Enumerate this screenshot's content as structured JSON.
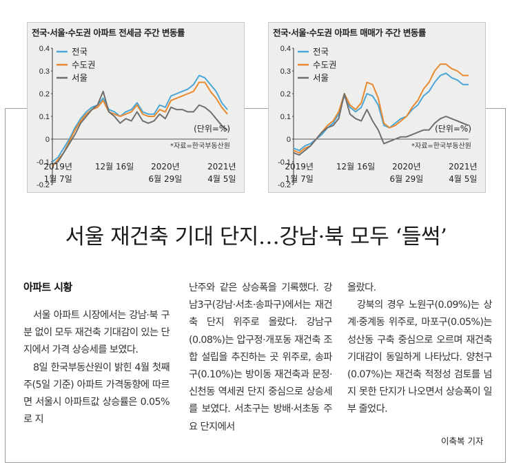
{
  "charts": [
    {
      "title": "전국·서울·수도권 아파트 전세금 주간 변동률",
      "legend": [
        "전국",
        "수도권",
        "서울"
      ],
      "unit_label": "(단위=%)",
      "source": "*자료=한국부동산원",
      "x_ticks": [
        {
          "line1": "2019년",
          "line2": "1월 7일"
        },
        {
          "line1": "12월 16일",
          "line2": ""
        },
        {
          "line1": "2020년",
          "line2": "6월 29일"
        },
        {
          "line1": "2021년",
          "line2": "4월 5일"
        }
      ],
      "y_ticks": [
        "0.4",
        "0.3",
        "0.2",
        "0.1",
        "0",
        "-0.1",
        "-0.2"
      ]
    },
    {
      "title": "전국·서울·수도권 아파트 매매가 주간 변동률",
      "legend": [
        "전국",
        "수도권",
        "서울"
      ],
      "unit_label": "(단위=%)",
      "source": "*자료=한국부동산원",
      "x_ticks": [
        {
          "line1": "2019년",
          "line2": "1월 7일"
        },
        {
          "line1": "12월 16일",
          "line2": ""
        },
        {
          "line1": "2020년",
          "line2": "6월 29일"
        },
        {
          "line1": "2021년",
          "line2": "4월 5일"
        }
      ],
      "y_ticks": [
        "0.4",
        "0.3",
        "0.2",
        "0.1",
        "0",
        "-0.1",
        "-0.2"
      ]
    }
  ],
  "chart_data": [
    {
      "type": "line",
      "title": "전국·서울·수도권 아파트 전세금 주간 변동률",
      "ylim": [
        -0.2,
        0.4
      ],
      "x": [
        0,
        4,
        8,
        12,
        16,
        20,
        24,
        28,
        32,
        36,
        40,
        44,
        48,
        52,
        56,
        60,
        64,
        68,
        72,
        76,
        80,
        84,
        88,
        92,
        96,
        100,
        104,
        108,
        112,
        116,
        120,
        124
      ],
      "series": [
        {
          "name": "전국",
          "color": "#4aa6d6",
          "values": [
            -0.1,
            -0.08,
            -0.04,
            0.0,
            0.05,
            0.09,
            0.12,
            0.14,
            0.15,
            0.18,
            0.13,
            0.12,
            0.1,
            0.12,
            0.13,
            0.16,
            0.12,
            0.11,
            0.11,
            0.15,
            0.14,
            0.19,
            0.2,
            0.21,
            0.22,
            0.24,
            0.28,
            0.27,
            0.24,
            0.21,
            0.16,
            0.13
          ]
        },
        {
          "name": "수도권",
          "color": "#e8892f",
          "values": [
            -0.12,
            -0.09,
            -0.06,
            -0.01,
            0.04,
            0.08,
            0.11,
            0.13,
            0.14,
            0.17,
            0.12,
            0.11,
            0.1,
            0.11,
            0.12,
            0.15,
            0.11,
            0.1,
            0.1,
            0.13,
            0.12,
            0.17,
            0.18,
            0.19,
            0.2,
            0.21,
            0.25,
            0.25,
            0.21,
            0.18,
            0.14,
            0.11
          ]
        },
        {
          "name": "서울",
          "color": "#6e6e6e",
          "values": [
            -0.11,
            -0.1,
            -0.06,
            -0.02,
            0.02,
            0.07,
            0.1,
            0.13,
            0.15,
            0.21,
            0.12,
            0.1,
            0.07,
            0.09,
            0.08,
            0.12,
            0.08,
            0.07,
            0.08,
            0.11,
            0.09,
            0.14,
            0.13,
            0.13,
            0.12,
            0.12,
            0.15,
            0.14,
            0.12,
            0.09,
            0.06,
            0.04
          ]
        }
      ]
    },
    {
      "type": "line",
      "title": "전국·서울·수도권 아파트 매매가 주간 변동률",
      "ylim": [
        -0.2,
        0.4
      ],
      "x": [
        0,
        4,
        8,
        12,
        16,
        20,
        24,
        28,
        32,
        36,
        40,
        44,
        48,
        52,
        56,
        60,
        64,
        68,
        72,
        76,
        80,
        84,
        88,
        92,
        96,
        100,
        104,
        108,
        112,
        116,
        120,
        124
      ],
      "series": [
        {
          "name": "전국",
          "color": "#4aa6d6",
          "values": [
            -0.04,
            -0.05,
            -0.03,
            -0.02,
            0.0,
            0.02,
            0.05,
            0.07,
            0.11,
            0.19,
            0.14,
            0.12,
            0.14,
            0.2,
            0.19,
            0.15,
            0.06,
            0.05,
            0.07,
            0.09,
            0.1,
            0.13,
            0.15,
            0.19,
            0.21,
            0.25,
            0.28,
            0.29,
            0.27,
            0.26,
            0.24,
            0.24
          ]
        },
        {
          "name": "수도권",
          "color": "#e8892f",
          "values": [
            -0.05,
            -0.06,
            -0.04,
            -0.03,
            0.0,
            0.03,
            0.06,
            0.08,
            0.12,
            0.2,
            0.15,
            0.13,
            0.16,
            0.25,
            0.24,
            0.18,
            0.07,
            0.05,
            0.06,
            0.08,
            0.1,
            0.14,
            0.17,
            0.22,
            0.25,
            0.3,
            0.33,
            0.33,
            0.31,
            0.3,
            0.28,
            0.28
          ]
        },
        {
          "name": "서울",
          "color": "#6e6e6e",
          "values": [
            -0.06,
            -0.07,
            -0.05,
            -0.03,
            0.0,
            0.03,
            0.05,
            0.06,
            0.09,
            0.2,
            0.11,
            0.09,
            0.08,
            0.13,
            0.08,
            0.04,
            -0.02,
            -0.01,
            0.0,
            0.01,
            0.01,
            0.02,
            0.03,
            0.04,
            0.04,
            0.07,
            0.09,
            0.1,
            0.09,
            0.08,
            0.07,
            0.06
          ]
        }
      ]
    }
  ],
  "article": {
    "headline": "서울 재건축 기대 단지…강남·북 모두 ‘들썩’",
    "section": "아파트 시황",
    "col1_p1": "서울 아파트 시장에서는 강남·북 구분 없이 모두 재건축 기대감이 있는 단지에서 가격 상승세를 보였다.",
    "col1_p2": "8일 한국부동산원이 밝힌 4월 첫째주(5일 기준) 아파트 가격동향에 따르면 서울시 아파트값 상승률은 0.05%로 지",
    "col2_p1": "난주와 같은 상승폭을 기록했다. 강남3구(강남·서초·송파구)에서는 재건축 단지 위주로 올랐다. 강남구(0.08%)는 압구정·개포동 재건축 조합 설립을 추진하는 곳 위주로, 송파구(0.10%)는 방이동 재건축과 문정·신천동 역세권 단지 중심으로 상승세를 보였다. 서초구는 방배·서초동 주요 단지에서",
    "col3_p1": "올랐다.",
    "col3_p2": "강북의 경우 노원구(0.09%)는 상계·중계동 위주로, 마포구(0.05%)는 성산동 구축 중심으로 오르며 재건축 기대감이 동일하게 나타났다. 양천구(0.07%)는 재건축 적정성 검토를 넘지 못한 단지가 나오면서 상승폭이 일부 줄었다.",
    "byline": "이축복 기자"
  }
}
